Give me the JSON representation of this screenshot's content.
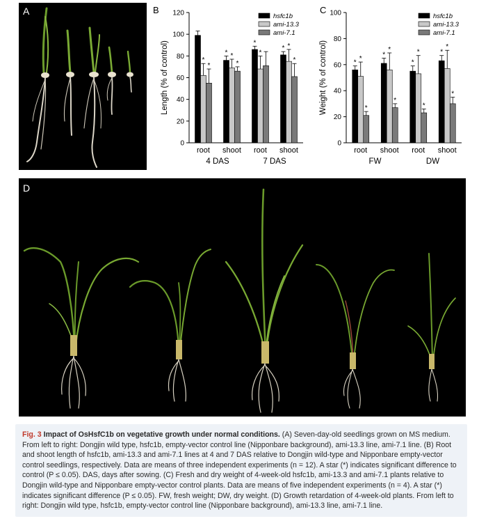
{
  "panels": {
    "A": {
      "letter": "A"
    },
    "B": {
      "letter": "B"
    },
    "C": {
      "letter": "C"
    },
    "D": {
      "letter": "D"
    }
  },
  "chart_data": [
    {
      "type": "bar",
      "panel": "B",
      "ylabel": "Length (% of control)",
      "ylim": [
        0,
        120
      ],
      "yticks": [
        0,
        20,
        40,
        60,
        80,
        100,
        120
      ],
      "categories": [
        "root",
        "shoot",
        "root",
        "shoot"
      ],
      "groups": [
        "4 DAS",
        "7 DAS"
      ],
      "series": [
        {
          "name": "hsfc1b",
          "values": [
            99,
            76,
            86,
            81
          ],
          "errors": [
            4,
            4,
            3,
            3
          ],
          "significant": [
            false,
            true,
            true,
            true
          ]
        },
        {
          "name": "ami-13.3",
          "values": [
            62,
            69,
            68,
            75
          ],
          "errors": [
            11,
            8,
            12,
            11
          ],
          "significant": [
            true,
            true,
            true,
            true
          ]
        },
        {
          "name": "ami-7.1",
          "values": [
            55,
            66,
            71,
            61
          ],
          "errors": [
            13,
            4,
            13,
            12
          ],
          "significant": [
            true,
            true,
            false,
            true
          ]
        }
      ],
      "legend": "top-right",
      "grid": false
    },
    {
      "type": "bar",
      "panel": "C",
      "ylabel": "Weight (% of control)",
      "ylim": [
        0,
        100
      ],
      "yticks": [
        0,
        20,
        40,
        60,
        80,
        100
      ],
      "categories": [
        "root",
        "shoot",
        "root",
        "shoot"
      ],
      "groups": [
        "FW",
        "DW"
      ],
      "series": [
        {
          "name": "hsfc1b",
          "values": [
            56,
            61,
            55,
            63
          ],
          "errors": [
            3,
            4,
            4,
            4
          ],
          "significant": [
            true,
            true,
            true,
            true
          ]
        },
        {
          "name": "ami-13.3",
          "values": [
            51,
            56,
            53,
            57
          ],
          "errors": [
            11,
            13,
            14,
            14
          ],
          "significant": [
            true,
            true,
            true,
            true
          ]
        },
        {
          "name": "ami-7.1",
          "values": [
            21,
            27,
            23,
            30
          ],
          "errors": [
            3,
            3,
            3,
            5
          ],
          "significant": [
            true,
            true,
            true,
            true
          ]
        }
      ],
      "legend": "top-right",
      "grid": false
    }
  ],
  "colors": {
    "hsfc1b": "#000000",
    "ami-13.3": "#c8c8c8",
    "ami-7.1": "#7a7a7a",
    "fig_label": "#c0392b",
    "caption_bg": "#eef2f7"
  },
  "caption": {
    "fig_label": "Fig. 3",
    "title": "Impact of OsHsfC1b on vegetative growth under normal conditions.",
    "body": "(A) Seven-day-old seedlings grown on MS medium. From left to right: Dongjin wild type, hsfc1b, empty-vector control line (Nipponbare background), ami-13.3 line, ami-7.1 line. (B) Root and shoot length of hsfc1b, ami-13.3 and ami-7.1 lines at 4 and 7 DAS relative to Dongjin wild-type and Nipponbare empty-vector control seedlings, respectively. Data are means of three independent experiments (n = 12). A star (*) indicates significant difference to control (P ≤ 0.05). DAS, days after sowing. (C) Fresh and dry weight of 4-week-old hsfc1b, ami-13.3 and ami-7.1 plants relative to Dongjin wild-type and Nipponbare empty-vector control plants. Data are means of five independent experiments (n = 4). A star (*) indicates significant difference (P ≤ 0.05). FW, fresh weight; DW, dry weight. (D) Growth retardation of 4-week-old plants. From left to right: Dongjin wild type, hsfc1b, empty-vector control line (Nipponbare background), ami-13.3 line, ami-7.1 line."
  }
}
